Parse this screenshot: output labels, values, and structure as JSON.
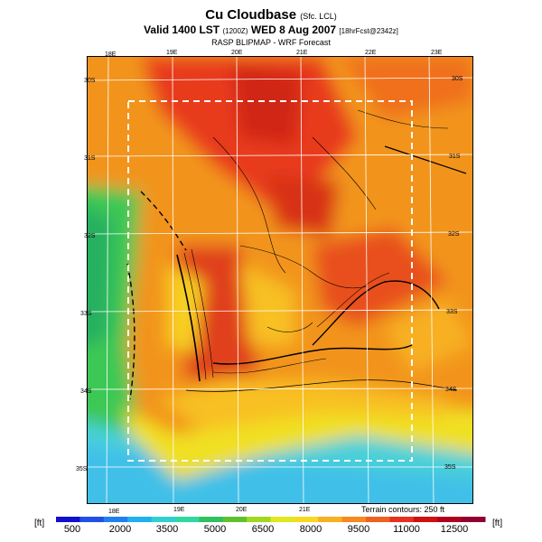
{
  "title": {
    "main": "Cu Cloudbase",
    "main_sub": "(Sfc. LCL)",
    "valid_prefix": "Valid 1400 LST",
    "valid_z": "(1200Z)",
    "valid_date": "WED 8 Aug 2007",
    "valid_fcst": "[18hrFcst@2342z]",
    "model": "RASP BLIPMAP - WRF Forecast"
  },
  "map": {
    "lon_top": [
      "18E",
      "19E",
      "20E",
      "21E",
      "22E",
      "23E"
    ],
    "lon_bottom": [
      "18E",
      "19E",
      "20E",
      "21E"
    ],
    "lat_left": [
      "30S",
      "31S",
      "32S",
      "33S",
      "34S",
      "35S"
    ],
    "lat_right": [
      "30S",
      "31S",
      "32S",
      "33S",
      "34S",
      "35S"
    ],
    "contour_note": "Terrain contours: 250 ft"
  },
  "colorbar": {
    "unit_left": "[ft]",
    "unit_right": "[ft]",
    "ticks": [
      "500",
      "2000",
      "3500",
      "5000",
      "6500",
      "8000",
      "9500",
      "11000",
      "12500"
    ],
    "colors": [
      "#1010d0",
      "#2050e8",
      "#2080f0",
      "#20b0f0",
      "#30d0d0",
      "#30d8a0",
      "#30c060",
      "#60c030",
      "#a0d820",
      "#e0e820",
      "#f8d820",
      "#f8b020",
      "#f88820",
      "#f06020",
      "#e83020",
      "#d01010",
      "#b00020",
      "#900030"
    ]
  }
}
